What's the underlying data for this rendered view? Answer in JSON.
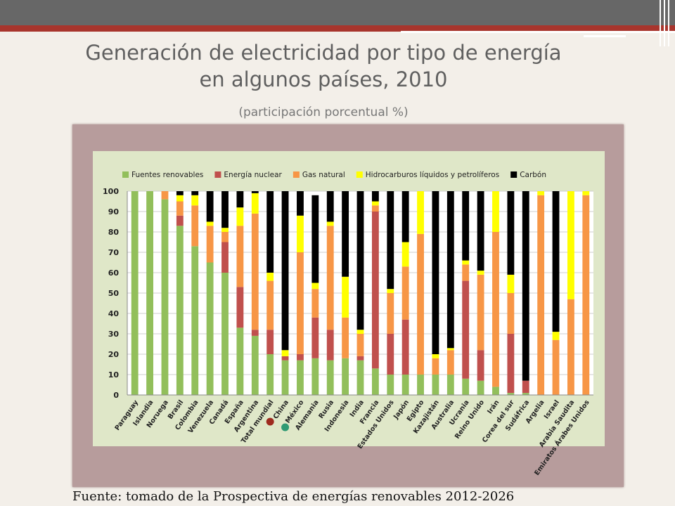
{
  "title_line1": "Generación de electricidad por tipo de energía",
  "title_line2": "en algunos países, 2010",
  "subtitle": "(participación  porcentual %)",
  "source": "Fuente: tomado de la Prospectiva de energías renovables 2012-2026",
  "markers": [
    {
      "country": "Total mundial",
      "color": "#9e2b1f"
    },
    {
      "country": "China",
      "color": "#2e9a73"
    }
  ],
  "chart_data": {
    "type": "bar",
    "stacked": true,
    "ylim": [
      0,
      100
    ],
    "yticks": [
      0,
      10,
      20,
      30,
      40,
      50,
      60,
      70,
      80,
      90,
      100
    ],
    "grid": true,
    "legend_position": "top",
    "categories": [
      "Paraguay",
      "Islandia",
      "Noruega",
      "Brasil",
      "Colombia",
      "Venezuela",
      "Canadá",
      "España",
      "Argentina",
      "Total mundial",
      "China",
      "México",
      "Alemania",
      "Rusia",
      "Indonesia",
      "India",
      "Francia",
      "Estados Unidos",
      "Japón",
      "Egipto",
      "Kazajistán",
      "Australia",
      "Ucrania",
      "Reino Unido",
      "Irán",
      "Corea del sur",
      "Sudáfrica",
      "Argelia",
      "Israel",
      "Arabia Saudita",
      "Emiratos Árabes Unidos"
    ],
    "series": [
      {
        "name": "Fuentes renovables",
        "color": "#92bf5b",
        "values": [
          100,
          100,
          96,
          83,
          73,
          65,
          60,
          33,
          29,
          20,
          17,
          17,
          18,
          17,
          18,
          17,
          13,
          10,
          10,
          10,
          10,
          10,
          8,
          7,
          4,
          1,
          1,
          0,
          0,
          0,
          0
        ]
      },
      {
        "name": "Energía nuclear",
        "color": "#c0504d",
        "values": [
          0,
          0,
          0,
          5,
          0,
          0,
          15,
          20,
          3,
          12,
          2,
          3,
          20,
          15,
          0,
          2,
          77,
          20,
          27,
          0,
          0,
          0,
          48,
          15,
          0,
          29,
          6,
          0,
          0,
          0,
          0
        ]
      },
      {
        "name": "Gas natural",
        "color": "#f79646",
        "values": [
          0,
          0,
          4,
          7,
          20,
          18,
          5,
          30,
          57,
          24,
          0,
          50,
          14,
          51,
          20,
          11,
          3,
          20,
          26,
          69,
          8,
          12,
          8,
          37,
          76,
          20,
          0,
          98,
          27,
          47,
          98
        ]
      },
      {
        "name": "Hidrocarburos líquidos y petrolíferos",
        "color": "#ffff00",
        "values": [
          0,
          0,
          0,
          3,
          5,
          2,
          2,
          9,
          10,
          4,
          3,
          18,
          3,
          2,
          20,
          2,
          2,
          2,
          12,
          21,
          2,
          1,
          2,
          2,
          20,
          9,
          0,
          2,
          4,
          53,
          2
        ]
      },
      {
        "name": "Carbón",
        "color": "#000000",
        "values": [
          0,
          0,
          0,
          2,
          2,
          15,
          18,
          8,
          1,
          40,
          78,
          12,
          43,
          15,
          42,
          68,
          5,
          48,
          25,
          0,
          80,
          77,
          34,
          39,
          0,
          41,
          93,
          0,
          69,
          0,
          0
        ]
      }
    ]
  }
}
